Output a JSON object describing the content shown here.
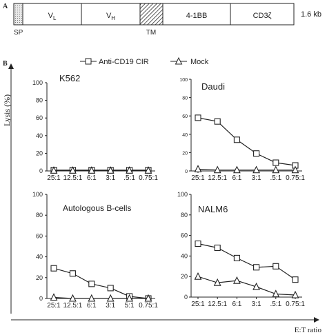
{
  "panel_a": {
    "label": "A",
    "segments": [
      "",
      "VL",
      "VH",
      "",
      "4-1BB",
      "CD3ζ"
    ],
    "below_labels": [
      "SP",
      "TM"
    ],
    "size_label": "1.6 kb"
  },
  "panel_b": {
    "label": "B",
    "y_axis_title": "Lysis (%)",
    "x_axis_title": "E:T ratio",
    "legend": [
      "Anti-CD19 CIR",
      "Mock"
    ]
  },
  "colors": {
    "ink": "#222222",
    "tm_hatch": "#555555",
    "sp_fill": "#e8e8e8"
  },
  "chart_data": [
    {
      "type": "line",
      "title": "K562",
      "categories": [
        "25:1",
        "12.5:1",
        "6:1",
        "3:1",
        ".5:1",
        "0.75:1"
      ],
      "ylim": [
        0,
        100
      ],
      "yticks": [
        0,
        20,
        40,
        60,
        80,
        100
      ],
      "series": [
        {
          "name": "Anti-CD19 CIR",
          "marker": "square",
          "values": [
            1,
            1,
            1,
            1,
            1,
            1
          ]
        },
        {
          "name": "Mock",
          "marker": "triangle",
          "values": [
            0.5,
            0.5,
            0.5,
            0.5,
            0.5,
            0.5
          ]
        }
      ]
    },
    {
      "type": "line",
      "title": "Daudi",
      "categories": [
        "25:1",
        "12.5:1",
        "6:1",
        "3:1",
        ".5:1",
        "0.75:1"
      ],
      "ylim": [
        0,
        100
      ],
      "yticks": [
        0,
        20,
        40,
        60,
        80,
        100
      ],
      "series": [
        {
          "name": "Anti-CD19 CIR",
          "marker": "square",
          "values": [
            58,
            54,
            34,
            19,
            9,
            6
          ]
        },
        {
          "name": "Mock",
          "marker": "triangle",
          "values": [
            2,
            1,
            1,
            1,
            1,
            1
          ]
        }
      ]
    },
    {
      "type": "line",
      "title": "Autologous B-cells",
      "categories": [
        "25:1",
        "12.5:1",
        "6:1",
        "3:1",
        "5:1",
        "0.75:1"
      ],
      "ylim": [
        0,
        100
      ],
      "yticks": [
        0,
        20,
        40,
        60,
        80,
        100
      ],
      "series": [
        {
          "name": "Anti-CD19 CIR",
          "marker": "square",
          "values": [
            29,
            24,
            14,
            10,
            2,
            0
          ]
        },
        {
          "name": "Mock",
          "marker": "triangle",
          "values": [
            1,
            0,
            0,
            0,
            0,
            0
          ]
        }
      ]
    },
    {
      "type": "line",
      "title": "NALM6",
      "categories": [
        "25:1",
        "12.5:1",
        "6:1",
        "3:1",
        ".5:1",
        "0.75:1"
      ],
      "ylim": [
        0,
        100
      ],
      "yticks": [
        0,
        20,
        40,
        60,
        80,
        100
      ],
      "series": [
        {
          "name": "Anti-CD19 CIR",
          "marker": "square",
          "values": [
            52,
            48,
            38,
            29,
            30,
            17
          ]
        },
        {
          "name": "Mock",
          "marker": "triangle",
          "values": [
            20,
            14,
            16,
            10,
            3,
            2
          ]
        }
      ]
    }
  ]
}
